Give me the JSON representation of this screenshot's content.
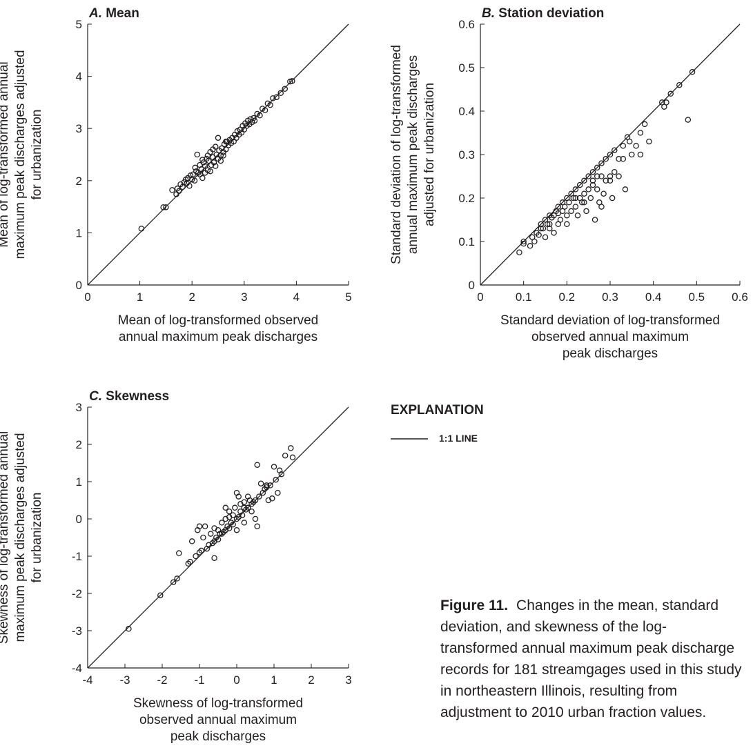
{
  "chart_data": [
    {
      "type": "scatter",
      "panel_label": "A.",
      "title": "Mean",
      "xlabel": [
        "Mean of log-transformed observed",
        "annual maximum peak discharges"
      ],
      "ylabel": [
        "Mean of log-transformed annual",
        "maximum peak discharges adjusted",
        "for urbanization"
      ],
      "xlim": [
        0,
        5
      ],
      "ylim": [
        0,
        5
      ],
      "xticks": [
        "0",
        "1",
        "2",
        "3",
        "4",
        "5"
      ],
      "yticks": [
        "0",
        "1",
        "2",
        "3",
        "4",
        "5"
      ],
      "grid": false,
      "reference_line": "1:1",
      "points": [
        [
          1.03,
          1.08
        ],
        [
          1.45,
          1.49
        ],
        [
          1.5,
          1.49
        ],
        [
          1.62,
          1.82
        ],
        [
          1.7,
          1.74
        ],
        [
          1.72,
          1.85
        ],
        [
          1.75,
          1.8
        ],
        [
          1.78,
          1.93
        ],
        [
          1.82,
          1.88
        ],
        [
          1.85,
          1.97
        ],
        [
          1.88,
          2.02
        ],
        [
          1.9,
          1.95
        ],
        [
          1.92,
          2.05
        ],
        [
          1.95,
          1.9
        ],
        [
          1.97,
          2.1
        ],
        [
          2.0,
          2.02
        ],
        [
          2.02,
          2.12
        ],
        [
          2.05,
          2.0
        ],
        [
          2.06,
          2.25
        ],
        [
          2.08,
          2.18
        ],
        [
          2.1,
          2.5
        ],
        [
          2.12,
          2.15
        ],
        [
          2.15,
          2.3
        ],
        [
          2.18,
          2.22
        ],
        [
          2.2,
          2.05
        ],
        [
          2.22,
          2.35
        ],
        [
          2.25,
          2.28
        ],
        [
          2.28,
          2.42
        ],
        [
          2.3,
          2.2
        ],
        [
          2.32,
          2.38
        ],
        [
          2.35,
          2.55
        ],
        [
          2.37,
          2.3
        ],
        [
          2.4,
          2.45
        ],
        [
          2.42,
          2.35
        ],
        [
          2.45,
          2.65
        ],
        [
          2.47,
          2.5
        ],
        [
          2.5,
          2.42
        ],
        [
          2.5,
          2.82
        ],
        [
          2.52,
          2.58
        ],
        [
          2.55,
          2.48
        ],
        [
          2.57,
          2.62
        ],
        [
          2.6,
          2.55
        ],
        [
          2.62,
          2.7
        ],
        [
          2.65,
          2.6
        ],
        [
          2.67,
          2.75
        ],
        [
          2.7,
          2.68
        ],
        [
          2.72,
          2.78
        ],
        [
          2.75,
          2.72
        ],
        [
          2.77,
          2.82
        ],
        [
          2.8,
          2.75
        ],
        [
          2.82,
          2.88
        ],
        [
          2.85,
          2.82
        ],
        [
          2.87,
          2.95
        ],
        [
          2.9,
          2.88
        ],
        [
          2.92,
          2.98
        ],
        [
          2.95,
          2.92
        ],
        [
          2.97,
          3.05
        ],
        [
          3.0,
          2.98
        ],
        [
          3.02,
          3.1
        ],
        [
          3.05,
          3.05
        ],
        [
          3.07,
          3.15
        ],
        [
          3.1,
          3.08
        ],
        [
          3.12,
          3.18
        ],
        [
          3.15,
          3.12
        ],
        [
          3.18,
          3.2
        ],
        [
          3.2,
          3.15
        ],
        [
          3.25,
          3.28
        ],
        [
          3.3,
          3.25
        ],
        [
          3.35,
          3.38
        ],
        [
          3.4,
          3.35
        ],
        [
          3.45,
          3.48
        ],
        [
          3.5,
          3.45
        ],
        [
          3.55,
          3.58
        ],
        [
          3.62,
          3.6
        ],
        [
          3.7,
          3.68
        ],
        [
          3.78,
          3.76
        ],
        [
          3.88,
          3.9
        ],
        [
          3.92,
          3.91
        ],
        [
          2.25,
          2.15
        ],
        [
          2.45,
          2.28
        ],
        [
          2.6,
          2.48
        ],
        [
          2.35,
          2.18
        ],
        [
          2.55,
          2.38
        ],
        [
          2.15,
          2.12
        ],
        [
          2.4,
          2.6
        ],
        [
          2.65,
          2.75
        ],
        [
          2.3,
          2.48
        ],
        [
          2.2,
          2.4
        ]
      ]
    },
    {
      "type": "scatter",
      "panel_label": "B.",
      "title": "Station deviation",
      "xlabel": [
        "Standard deviation of log-transformed",
        "observed annual maximum",
        "peak discharges"
      ],
      "ylabel": [
        "Standard deviation of log-transformed",
        "annual maximum peak discharges",
        "adjusted for urbanization"
      ],
      "xlim": [
        0,
        0.6
      ],
      "ylim": [
        0,
        0.6
      ],
      "xticks": [
        "0",
        "0.1",
        "0.2",
        "0.3",
        "0.4",
        "0.5",
        "0.6"
      ],
      "yticks": [
        "0",
        "0.1",
        "0.2",
        "0.3",
        "0.4",
        "0.5",
        "0.6"
      ],
      "grid": false,
      "reference_line": "1:1",
      "points": [
        [
          0.09,
          0.075
        ],
        [
          0.1,
          0.1
        ],
        [
          0.1,
          0.095
        ],
        [
          0.115,
          0.09
        ],
        [
          0.12,
          0.11
        ],
        [
          0.125,
          0.1
        ],
        [
          0.13,
          0.12
        ],
        [
          0.135,
          0.115
        ],
        [
          0.14,
          0.14
        ],
        [
          0.145,
          0.13
        ],
        [
          0.15,
          0.15
        ],
        [
          0.15,
          0.11
        ],
        [
          0.155,
          0.14
        ],
        [
          0.16,
          0.16
        ],
        [
          0.16,
          0.13
        ],
        [
          0.165,
          0.155
        ],
        [
          0.17,
          0.16
        ],
        [
          0.17,
          0.12
        ],
        [
          0.175,
          0.17
        ],
        [
          0.18,
          0.165
        ],
        [
          0.18,
          0.18
        ],
        [
          0.185,
          0.15
        ],
        [
          0.19,
          0.19
        ],
        [
          0.19,
          0.17
        ],
        [
          0.195,
          0.18
        ],
        [
          0.2,
          0.2
        ],
        [
          0.2,
          0.16
        ],
        [
          0.205,
          0.19
        ],
        [
          0.21,
          0.21
        ],
        [
          0.21,
          0.17
        ],
        [
          0.215,
          0.2
        ],
        [
          0.22,
          0.22
        ],
        [
          0.22,
          0.18
        ],
        [
          0.225,
          0.16
        ],
        [
          0.23,
          0.23
        ],
        [
          0.23,
          0.2
        ],
        [
          0.235,
          0.19
        ],
        [
          0.24,
          0.24
        ],
        [
          0.24,
          0.21
        ],
        [
          0.245,
          0.17
        ],
        [
          0.25,
          0.25
        ],
        [
          0.25,
          0.22
        ],
        [
          0.255,
          0.2
        ],
        [
          0.26,
          0.26
        ],
        [
          0.26,
          0.23
        ],
        [
          0.265,
          0.15
        ],
        [
          0.27,
          0.27
        ],
        [
          0.27,
          0.22
        ],
        [
          0.275,
          0.19
        ],
        [
          0.28,
          0.28
        ],
        [
          0.28,
          0.25
        ],
        [
          0.285,
          0.21
        ],
        [
          0.29,
          0.29
        ],
        [
          0.29,
          0.24
        ],
        [
          0.3,
          0.3
        ],
        [
          0.3,
          0.25
        ],
        [
          0.305,
          0.2
        ],
        [
          0.31,
          0.26
        ],
        [
          0.31,
          0.31
        ],
        [
          0.32,
          0.29
        ],
        [
          0.32,
          0.25
        ],
        [
          0.33,
          0.32
        ],
        [
          0.33,
          0.29
        ],
        [
          0.335,
          0.22
        ],
        [
          0.34,
          0.34
        ],
        [
          0.345,
          0.33
        ],
        [
          0.35,
          0.3
        ],
        [
          0.36,
          0.32
        ],
        [
          0.37,
          0.3
        ],
        [
          0.37,
          0.35
        ],
        [
          0.38,
          0.37
        ],
        [
          0.39,
          0.33
        ],
        [
          0.42,
          0.42
        ],
        [
          0.425,
          0.41
        ],
        [
          0.43,
          0.42
        ],
        [
          0.44,
          0.44
        ],
        [
          0.46,
          0.46
        ],
        [
          0.48,
          0.38
        ],
        [
          0.49,
          0.49
        ],
        [
          0.22,
          0.2
        ],
        [
          0.24,
          0.19
        ],
        [
          0.26,
          0.24
        ],
        [
          0.28,
          0.18
        ],
        [
          0.3,
          0.24
        ],
        [
          0.2,
          0.14
        ],
        [
          0.18,
          0.14
        ],
        [
          0.16,
          0.14
        ],
        [
          0.14,
          0.13
        ],
        [
          0.27,
          0.25
        ]
      ]
    },
    {
      "type": "scatter",
      "panel_label": "C.",
      "title": "Skewness",
      "xlabel": [
        "Skewness of log-transformed",
        "observed annual maximum",
        "peak discharges"
      ],
      "ylabel": [
        "Skewness of log-transformed annual",
        "maximum peak discharges adjusted",
        "for urbanization"
      ],
      "xlim": [
        -4,
        3
      ],
      "ylim": [
        -4,
        3
      ],
      "xticks": [
        "-4",
        "-3",
        "-2",
        "-1",
        "0",
        "1",
        "2",
        "3"
      ],
      "yticks": [
        "-4",
        "-3",
        "-2",
        "-1",
        "0",
        "1",
        "2",
        "3"
      ],
      "grid": false,
      "reference_line": "1:1",
      "points": [
        [
          -2.9,
          -2.95
        ],
        [
          -2.05,
          -2.05
        ],
        [
          -1.6,
          -1.6
        ],
        [
          -1.7,
          -1.7
        ],
        [
          -1.55,
          -0.92
        ],
        [
          -1.3,
          -1.2
        ],
        [
          -1.25,
          -1.15
        ],
        [
          -1.2,
          -0.6
        ],
        [
          -1.1,
          -1.0
        ],
        [
          -1.05,
          -0.3
        ],
        [
          -1.0,
          -0.2
        ],
        [
          -1.0,
          -0.9
        ],
        [
          -0.95,
          -0.85
        ],
        [
          -0.9,
          -0.5
        ],
        [
          -0.85,
          -0.2
        ],
        [
          -0.8,
          -0.8
        ],
        [
          -0.75,
          -0.7
        ],
        [
          -0.7,
          -0.4
        ],
        [
          -0.65,
          -0.65
        ],
        [
          -0.6,
          -0.6
        ],
        [
          -0.6,
          -1.05
        ],
        [
          -0.55,
          -0.5
        ],
        [
          -0.5,
          -0.3
        ],
        [
          -0.5,
          -0.55
        ],
        [
          -0.45,
          -0.4
        ],
        [
          -0.4,
          -0.1
        ],
        [
          -0.4,
          -0.4
        ],
        [
          -0.35,
          -0.35
        ],
        [
          -0.3,
          0.0
        ],
        [
          -0.3,
          -0.3
        ],
        [
          -0.25,
          -0.2
        ],
        [
          -0.2,
          0.2
        ],
        [
          -0.2,
          -0.25
        ],
        [
          -0.15,
          -0.1
        ],
        [
          -0.1,
          0.1
        ],
        [
          -0.1,
          -0.15
        ],
        [
          -0.05,
          0.3
        ],
        [
          0.0,
          0.0
        ],
        [
          0.0,
          -0.3
        ],
        [
          0.05,
          0.6
        ],
        [
          0.05,
          0.05
        ],
        [
          0.1,
          0.2
        ],
        [
          0.15,
          0.1
        ],
        [
          0.2,
          0.45
        ],
        [
          0.2,
          0.3
        ],
        [
          0.25,
          0.25
        ],
        [
          0.3,
          0.3
        ],
        [
          0.35,
          0.5
        ],
        [
          0.4,
          0.4
        ],
        [
          0.45,
          0.45
        ],
        [
          0.5,
          0.0
        ],
        [
          0.5,
          0.5
        ],
        [
          0.55,
          1.45
        ],
        [
          0.55,
          -0.2
        ],
        [
          0.6,
          0.6
        ],
        [
          0.65,
          0.95
        ],
        [
          0.7,
          0.7
        ],
        [
          0.75,
          0.8
        ],
        [
          0.8,
          0.85
        ],
        [
          0.85,
          0.5
        ],
        [
          0.9,
          0.9
        ],
        [
          0.95,
          0.55
        ],
        [
          1.0,
          1.4
        ],
        [
          1.05,
          1.05
        ],
        [
          1.1,
          0.7
        ],
        [
          1.15,
          1.3
        ],
        [
          1.2,
          1.2
        ],
        [
          1.3,
          1.7
        ],
        [
          1.45,
          1.9
        ],
        [
          1.5,
          1.65
        ],
        [
          0.0,
          0.7
        ],
        [
          -0.3,
          0.3
        ],
        [
          0.3,
          0.6
        ],
        [
          -0.6,
          -0.25
        ],
        [
          0.2,
          -0.1
        ],
        [
          0.8,
          0.9
        ],
        [
          0.4,
          0.2
        ],
        [
          -0.2,
          0.05
        ],
        [
          0.1,
          0.4
        ]
      ]
    }
  ],
  "explanation": {
    "heading": "EXPLANATION",
    "line_label": "1:1 LINE"
  },
  "caption": {
    "label": "Figure 11.",
    "text": "Changes in the mean, standard deviation, and skewness of the log-transformed annual maximum peak discharge records for 181 streamgages used in this study in northeastern Illinois, resulting from adjustment to 2010 urban fraction values."
  },
  "colors": {
    "ink": "#231f20",
    "background": "#ffffff"
  }
}
